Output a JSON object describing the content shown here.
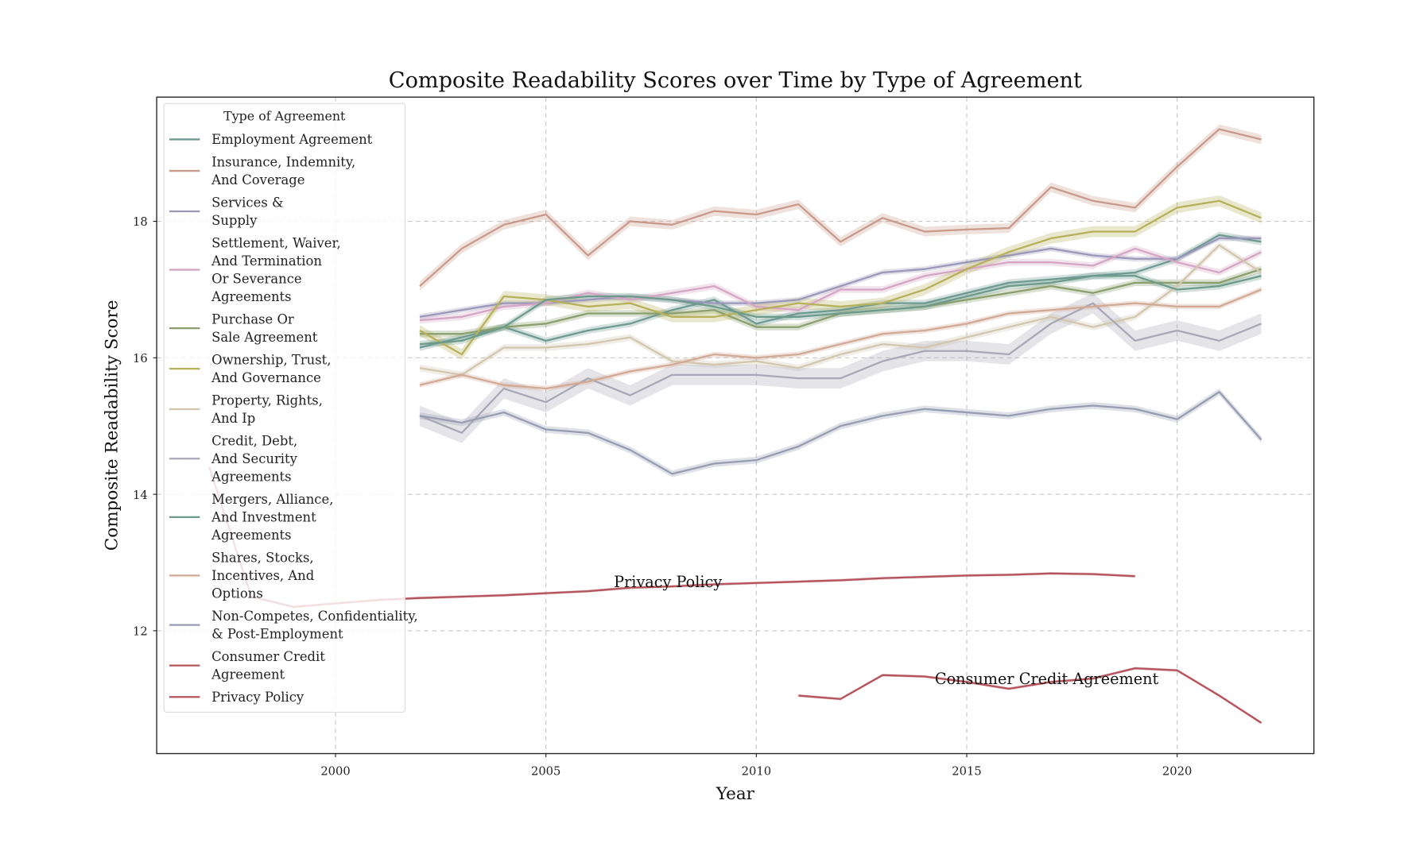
{
  "chart_data": {
    "type": "line",
    "title": "Composite Readability Scores over Time by Type of Agreement",
    "xlabel": "Year",
    "ylabel": "Composite Readability Score",
    "xlim": [
      1995.75,
      2023.25
    ],
    "ylim": [
      10.2,
      19.82
    ],
    "xticks": [
      2000,
      2005,
      2010,
      2015,
      2020
    ],
    "yticks": [
      12,
      14,
      16,
      18
    ],
    "grid": true,
    "legend": {
      "title": "Type of Agreement",
      "placement": "upper-left"
    },
    "annotations": [
      {
        "text": "Privacy Policy",
        "x": 2007.9,
        "y": 12.72
      },
      {
        "text": "Consumer Credit Agreement",
        "x": 2016.9,
        "y": 11.3
      }
    ],
    "series": [
      {
        "legend_lines": [
          "Employment Agreement"
        ],
        "color": "#6f9a94",
        "ci": 0.05,
        "x0": 2002,
        "values": [
          16.15,
          16.3,
          16.45,
          16.25,
          16.4,
          16.5,
          16.7,
          16.85,
          16.5,
          16.65,
          16.7,
          16.8,
          16.8,
          16.95,
          17.1,
          17.15,
          17.2,
          17.25,
          17.45,
          17.8,
          17.7
        ]
      },
      {
        "legend_lines": [
          "Insurance, Indemnity,",
          "And Coverage"
        ],
        "color": "#c99a8c",
        "ci": 0.07,
        "x0": 2002,
        "values": [
          17.05,
          17.6,
          17.95,
          18.1,
          17.5,
          18.0,
          17.95,
          18.15,
          18.1,
          18.25,
          17.7,
          18.05,
          17.85,
          17.88,
          17.9,
          18.5,
          18.3,
          18.2,
          18.8,
          19.35,
          19.2
        ]
      },
      {
        "legend_lines": [
          "Services &",
          "Supply"
        ],
        "color": "#9a97b8",
        "ci": 0.04,
        "x0": 2002,
        "values": [
          16.6,
          16.7,
          16.8,
          16.8,
          16.85,
          16.9,
          16.85,
          16.8,
          16.8,
          16.85,
          17.05,
          17.25,
          17.3,
          17.4,
          17.5,
          17.6,
          17.5,
          17.45,
          17.45,
          17.75,
          17.75
        ]
      },
      {
        "legend_lines": [
          "Settlement, Waiver,",
          "And Termination",
          "Or Severance",
          "Agreements"
        ],
        "color": "#d4a5c4",
        "ci": 0.05,
        "x0": 2002,
        "values": [
          16.55,
          16.6,
          16.75,
          16.8,
          16.95,
          16.85,
          16.95,
          17.05,
          16.75,
          16.7,
          17.0,
          17.0,
          17.2,
          17.3,
          17.4,
          17.4,
          17.35,
          17.6,
          17.4,
          17.25,
          17.55
        ]
      },
      {
        "legend_lines": [
          "Purchase Or",
          "Sale Agreement"
        ],
        "color": "#8a9e6e",
        "ci": 0.05,
        "x0": 2002,
        "values": [
          16.35,
          16.35,
          16.45,
          16.5,
          16.65,
          16.65,
          16.65,
          16.7,
          16.45,
          16.45,
          16.65,
          16.7,
          16.75,
          16.85,
          16.95,
          17.05,
          16.95,
          17.1,
          17.1,
          17.1,
          17.3
        ]
      },
      {
        "legend_lines": [
          "Ownership, Trust,",
          "And Governance"
        ],
        "color": "#b6b05a",
        "ci": 0.08,
        "x0": 2002,
        "values": [
          16.4,
          16.05,
          16.9,
          16.85,
          16.75,
          16.8,
          16.6,
          16.6,
          16.7,
          16.8,
          16.75,
          16.8,
          17.0,
          17.3,
          17.55,
          17.75,
          17.85,
          17.85,
          18.2,
          18.3,
          18.05
        ]
      },
      {
        "legend_lines": [
          "Property, Rights,",
          "And Ip"
        ],
        "color": "#d2c6ae",
        "ci": 0.05,
        "x0": 2002,
        "values": [
          15.85,
          15.75,
          16.15,
          16.15,
          16.2,
          16.3,
          15.95,
          15.9,
          15.95,
          15.85,
          16.05,
          16.2,
          16.15,
          16.3,
          16.45,
          16.6,
          16.45,
          16.6,
          17.05,
          17.65,
          17.25
        ]
      },
      {
        "legend_lines": [
          "Credit, Debt,",
          "And Security",
          "Agreements"
        ],
        "color": "#a9a7b6",
        "ci": 0.15,
        "x0": 2002,
        "values": [
          15.15,
          14.9,
          15.55,
          15.35,
          15.7,
          15.45,
          15.75,
          15.75,
          15.75,
          15.7,
          15.7,
          15.95,
          16.1,
          16.1,
          16.05,
          16.5,
          16.8,
          16.25,
          16.4,
          16.25,
          16.5
        ]
      },
      {
        "legend_lines": [
          "Mergers, Alliance,",
          "And Investment",
          "Agreements"
        ],
        "color": "#6e9a8c",
        "ci": 0.05,
        "x0": 2002,
        "values": [
          16.2,
          16.25,
          16.45,
          16.85,
          16.9,
          16.9,
          16.85,
          16.75,
          16.6,
          16.6,
          16.65,
          16.7,
          16.75,
          16.9,
          17.05,
          17.1,
          17.2,
          17.2,
          17.0,
          17.05,
          17.2
        ]
      },
      {
        "legend_lines": [
          "Shares, Stocks,",
          "Incentives, And",
          "Options"
        ],
        "color": "#d1a995",
        "ci": 0.04,
        "x0": 2002,
        "values": [
          15.6,
          15.75,
          15.6,
          15.55,
          15.65,
          15.8,
          15.9,
          16.05,
          16.0,
          16.05,
          16.2,
          16.35,
          16.4,
          16.5,
          16.65,
          16.7,
          16.75,
          16.8,
          16.75,
          16.75,
          17.0
        ]
      },
      {
        "legend_lines": [
          "Non-Competes, Confidentiality,",
          "& Post-Employment"
        ],
        "color": "#969cb2",
        "ci": 0.05,
        "x0": 2002,
        "values": [
          15.15,
          15.05,
          15.2,
          14.95,
          14.9,
          14.65,
          14.3,
          14.45,
          14.5,
          14.7,
          15.0,
          15.15,
          15.25,
          15.2,
          15.15,
          15.25,
          15.3,
          15.25,
          15.1,
          15.5,
          14.8
        ]
      },
      {
        "legend_lines": [
          "Consumer Credit",
          "Agreement"
        ],
        "color": "#b5545c",
        "ci": 0.02,
        "x0": 2011,
        "values": [
          11.05,
          11.0,
          11.35,
          11.33,
          11.25,
          11.15,
          11.25,
          11.3,
          11.45,
          11.42,
          11.05,
          10.65
        ]
      },
      {
        "legend_lines": [
          "Privacy Policy"
        ],
        "color": "#b5545c",
        "ci": 0.02,
        "x0": 1997,
        "values": [
          14.4,
          12.5,
          12.35,
          12.4,
          12.45,
          12.48,
          12.5,
          12.52,
          12.55,
          12.58,
          12.63,
          12.65,
          12.68,
          12.7,
          12.72,
          12.74,
          12.77,
          12.79,
          12.81,
          12.82,
          12.84,
          12.83,
          12.8
        ]
      }
    ]
  }
}
